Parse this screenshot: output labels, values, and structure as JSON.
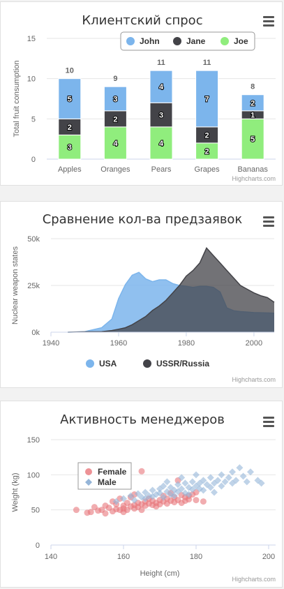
{
  "charts": [
    {
      "title": "Клиентский спрос",
      "credit": "Highcharts.com",
      "menu_icon": "hamburger-icon",
      "chart_data": {
        "type": "bar",
        "stacked": true,
        "title": "Клиентский спрос",
        "ylabel": "Total fruit consumption",
        "ylim": [
          0,
          15
        ],
        "yticks": [
          0,
          5,
          10,
          15
        ],
        "categories": [
          "Apples",
          "Oranges",
          "Pears",
          "Grapes",
          "Bananas"
        ],
        "series": [
          {
            "name": "John",
            "color": "#7cb5ec",
            "values": [
              5,
              3,
              4,
              7,
              2
            ]
          },
          {
            "name": "Jane",
            "color": "#434348",
            "values": [
              2,
              2,
              3,
              2,
              1
            ]
          },
          {
            "name": "Joe",
            "color": "#90ed7d",
            "values": [
              3,
              4,
              4,
              2,
              5
            ]
          }
        ],
        "totals": [
          10,
          9,
          11,
          11,
          8
        ],
        "legend": "top-right"
      }
    },
    {
      "title": "Сравнение кол-ва предзаявок",
      "credit": "Highcharts.com",
      "menu_icon": "hamburger-icon",
      "chart_data": {
        "type": "area",
        "title": "Сравнение кол-ва предзаявок",
        "ylabel": "Nuclear weapon states",
        "xlim": [
          1940,
          2006
        ],
        "ylim": [
          0,
          50000
        ],
        "xticks": [
          1940,
          1960,
          1980,
          2000
        ],
        "ytick_labels": [
          "0k",
          "25k",
          "50k"
        ],
        "ytick_values": [
          0,
          25000,
          50000
        ],
        "series": [
          {
            "name": "USA",
            "color": "#7cb5ec",
            "x": [
              1945,
              1950,
              1955,
              1958,
              1960,
              1962,
              1964,
              1966,
              1968,
              1970,
              1972,
              1974,
              1976,
              1978,
              1980,
              1982,
              1984,
              1986,
              1988,
              1990,
              1992,
              1994,
              1996,
              1998,
              2000,
              2002,
              2004,
              2006
            ],
            "values": [
              0,
              300,
              2400,
              7000,
              18000,
              25500,
              30500,
              32000,
              28500,
              27000,
              28000,
              28000,
              26000,
              25000,
              24500,
              24000,
              24500,
              24500,
              24000,
              21500,
              13000,
              11500,
              11000,
              10800,
              10500,
              10400,
              10300,
              10200
            ]
          },
          {
            "name": "USSR/Russia",
            "color": "#434348",
            "x": [
              1945,
              1950,
              1955,
              1958,
              1960,
              1962,
              1964,
              1966,
              1968,
              1970,
              1972,
              1974,
              1976,
              1978,
              1980,
              1982,
              1984,
              1986,
              1988,
              1990,
              1992,
              1994,
              1996,
              1998,
              2000,
              2002,
              2004,
              2006
            ],
            "values": [
              0,
              200,
              300,
              900,
              1600,
              2400,
              4000,
              6200,
              8400,
              11600,
              14000,
              17000,
              21000,
              25000,
              30000,
              33000,
              37000,
              45000,
              41000,
              37000,
              33000,
              29000,
              25000,
              23000,
              21000,
              19500,
              18500,
              16000
            ]
          }
        ],
        "legend": "bottom-center"
      }
    },
    {
      "title": "Активность менеджеров",
      "credit": "Highcharts.com",
      "menu_icon": "hamburger-icon",
      "chart_data": {
        "type": "scatter",
        "title": "Активность менеджеров",
        "xlabel": "Height (cm)",
        "ylabel": "Weight (kg)",
        "xlim": [
          140,
          200
        ],
        "ylim": [
          0,
          150
        ],
        "xticks": [
          140,
          160,
          180,
          200
        ],
        "yticks": [
          0,
          50,
          100,
          150
        ],
        "legend": "top-left",
        "series": [
          {
            "name": "Female",
            "color": "#e8777c",
            "marker": "circle",
            "points": [
              [
                147,
                50
              ],
              [
                150,
                46
              ],
              [
                151,
                47
              ],
              [
                152,
                54
              ],
              [
                153,
                49
              ],
              [
                154,
                50
              ],
              [
                155,
                56
              ],
              [
                155,
                45
              ],
              [
                156,
                53
              ],
              [
                157,
                48
              ],
              [
                157,
                62
              ],
              [
                158,
                51
              ],
              [
                158,
                58
              ],
              [
                159,
                50
              ],
              [
                159,
                66
              ],
              [
                160,
                52
              ],
              [
                160,
                56
              ],
              [
                160,
                47
              ],
              [
                161,
                50
              ],
              [
                161,
                60
              ],
              [
                162,
                55
              ],
              [
                162,
                68
              ],
              [
                163,
                52
              ],
              [
                163,
                57
              ],
              [
                163,
                72
              ],
              [
                164,
                54
              ],
              [
                164,
                60
              ],
              [
                165,
                58
              ],
              [
                165,
                50
              ],
              [
                165,
                105
              ],
              [
                166,
                62
              ],
              [
                166,
                56
              ],
              [
                167,
                59
              ],
              [
                167,
                66
              ],
              [
                168,
                57
              ],
              [
                168,
                63
              ],
              [
                169,
                60
              ],
              [
                169,
                55
              ],
              [
                170,
                64
              ],
              [
                170,
                58
              ],
              [
                171,
                70
              ],
              [
                171,
                62
              ],
              [
                172,
                59
              ],
              [
                172,
                66
              ],
              [
                173,
                63
              ],
              [
                173,
                74
              ],
              [
                174,
                61
              ],
              [
                174,
                68
              ],
              [
                175,
                64
              ],
              [
                175,
                92
              ],
              [
                176,
                60
              ],
              [
                176,
                71
              ],
              [
                177,
                68
              ],
              [
                177,
                63
              ],
              [
                178,
                70
              ],
              [
                178,
                65
              ],
              [
                179,
                72
              ],
              [
                180,
                64
              ],
              [
                180,
                75
              ],
              [
                182,
                62
              ]
            ]
          },
          {
            "name": "Male",
            "color": "#95b5d8",
            "marker": "diamond",
            "points": [
              [
                158,
                62
              ],
              [
                160,
                66
              ],
              [
                162,
                70
              ],
              [
                163,
                64
              ],
              [
                164,
                73
              ],
              [
                165,
                68
              ],
              [
                166,
                75
              ],
              [
                166,
                66
              ],
              [
                167,
                70
              ],
              [
                168,
                78
              ],
              [
                168,
                69
              ],
              [
                169,
                72
              ],
              [
                170,
                80
              ],
              [
                170,
                74
              ],
              [
                171,
                68
              ],
              [
                171,
                84
              ],
              [
                172,
                76
              ],
              [
                172,
                90
              ],
              [
                173,
                72
              ],
              [
                173,
                82
              ],
              [
                174,
                78
              ],
              [
                174,
                70
              ],
              [
                175,
                86
              ],
              [
                175,
                76
              ],
              [
                176,
                80
              ],
              [
                176,
                96
              ],
              [
                177,
                74
              ],
              [
                177,
                88
              ],
              [
                178,
                82
              ],
              [
                178,
                72
              ],
              [
                179,
                90
              ],
              [
                179,
                79
              ],
              [
                180,
                84
              ],
              [
                180,
                100
              ],
              [
                181,
                80
              ],
              [
                181,
                88
              ],
              [
                182,
                92
              ],
              [
                182,
                78
              ],
              [
                183,
                86
              ],
              [
                184,
                96
              ],
              [
                184,
                82
              ],
              [
                185,
                88
              ],
              [
                185,
                75
              ],
              [
                186,
                92
              ],
              [
                187,
                84
              ],
              [
                187,
                100
              ],
              [
                188,
                90
              ],
              [
                189,
                96
              ],
              [
                190,
                88
              ],
              [
                190,
                104
              ],
              [
                191,
                92
              ],
              [
                192,
                110
              ],
              [
                193,
                98
              ],
              [
                194,
                90
              ],
              [
                195,
                104
              ],
              [
                197,
                92
              ],
              [
                198,
                88
              ]
            ]
          }
        ]
      }
    }
  ]
}
